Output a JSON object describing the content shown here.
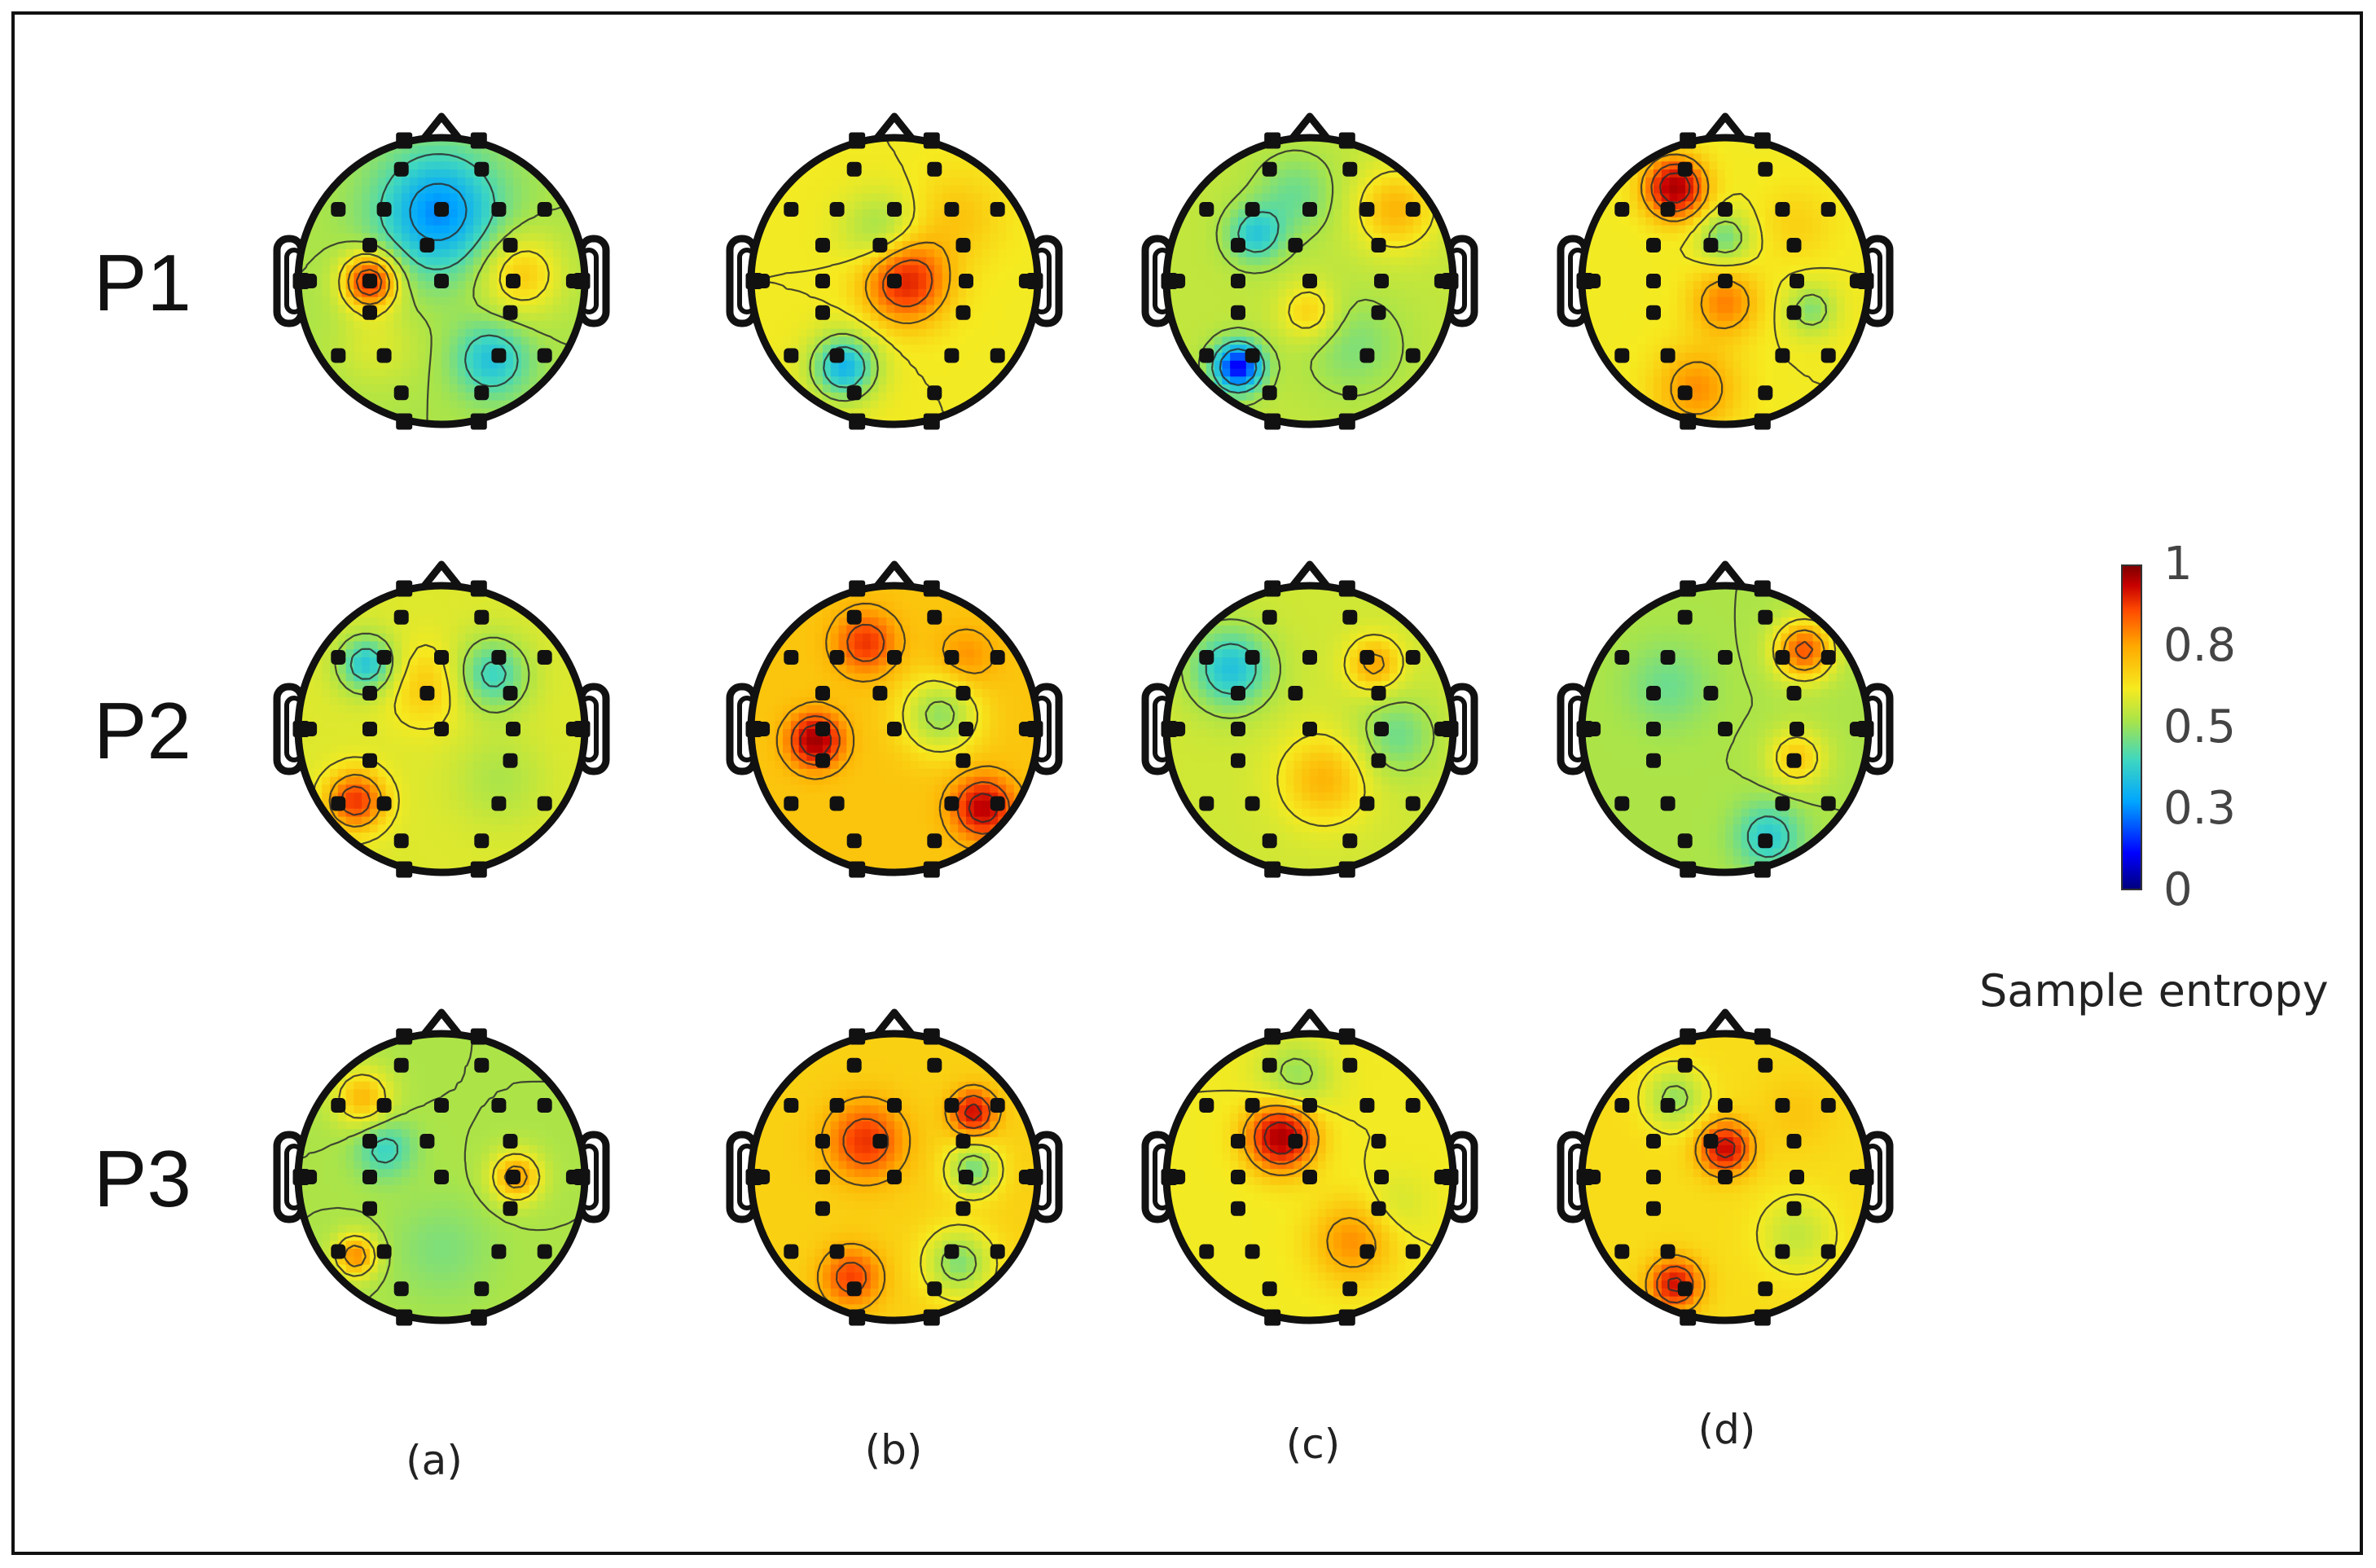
{
  "rows": [
    "P1",
    "P2",
    "P3"
  ],
  "columns": [
    "(a)",
    "(b)",
    "(c)",
    "(d)"
  ],
  "colorbar": {
    "title": "Sample entropy",
    "ticks": [
      "1",
      "0.8",
      "0.5",
      "0.3",
      "0"
    ]
  },
  "colormap": [
    "#00007f",
    "#0000ff",
    "#00a6ff",
    "#3fd7c0",
    "#a8e44a",
    "#f6ea20",
    "#ffaa00",
    "#ff4d00",
    "#c80000",
    "#7f0000"
  ],
  "maps": [
    [
      {
        "base": 0.45,
        "blobs": [
          [
            -0.02,
            -0.48,
            0.2,
            0.3
          ],
          [
            -0.5,
            0.0,
            0.85,
            0.13
          ],
          [
            0.55,
            -0.05,
            0.62,
            0.2
          ],
          [
            0.35,
            0.55,
            0.28,
            0.18
          ],
          [
            -0.45,
            0.45,
            0.52,
            0.2
          ],
          [
            0.0,
            0.2,
            0.45,
            0.25
          ]
        ]
      },
      {
        "base": 0.55,
        "blobs": [
          [
            0.08,
            0.0,
            0.85,
            0.2
          ],
          [
            -0.35,
            0.6,
            0.25,
            0.16
          ],
          [
            -0.1,
            -0.35,
            0.42,
            0.18
          ],
          [
            0.45,
            -0.45,
            0.62,
            0.22
          ]
        ]
      },
      {
        "base": 0.48,
        "blobs": [
          [
            -0.38,
            -0.32,
            0.3,
            0.14
          ],
          [
            -0.5,
            0.6,
            0.08,
            0.12
          ],
          [
            0.0,
            0.22,
            0.62,
            0.14
          ],
          [
            0.6,
            -0.5,
            0.65,
            0.2
          ],
          [
            0.3,
            0.45,
            0.4,
            0.25
          ],
          [
            -0.1,
            -0.6,
            0.38,
            0.2
          ]
        ]
      },
      {
        "base": 0.55,
        "blobs": [
          [
            -0.35,
            -0.65,
            0.95,
            0.14
          ],
          [
            0.0,
            -0.3,
            0.38,
            0.12
          ],
          [
            0.0,
            0.15,
            0.72,
            0.16
          ],
          [
            0.6,
            0.2,
            0.4,
            0.12
          ],
          [
            -0.2,
            0.75,
            0.7,
            0.2
          ],
          [
            0.5,
            -0.4,
            0.6,
            0.18
          ]
        ]
      }
    ],
    [
      {
        "base": 0.52,
        "blobs": [
          [
            -0.52,
            -0.45,
            0.28,
            0.14
          ],
          [
            0.35,
            -0.38,
            0.32,
            0.18
          ],
          [
            -0.6,
            0.5,
            0.82,
            0.14
          ],
          [
            -0.1,
            -0.3,
            0.62,
            0.2
          ],
          [
            0.4,
            0.35,
            0.45,
            0.22
          ]
        ]
      },
      {
        "base": 0.62,
        "blobs": [
          [
            -0.55,
            0.08,
            0.97,
            0.12
          ],
          [
            0.32,
            -0.1,
            0.42,
            0.18
          ],
          [
            0.62,
            0.55,
            0.92,
            0.14
          ],
          [
            -0.2,
            -0.6,
            0.82,
            0.14
          ],
          [
            0.5,
            -0.5,
            0.7,
            0.14
          ]
        ]
      },
      {
        "base": 0.5,
        "blobs": [
          [
            -0.55,
            -0.42,
            0.28,
            0.2
          ],
          [
            0.6,
            0.05,
            0.38,
            0.2
          ],
          [
            0.1,
            0.35,
            0.65,
            0.22
          ],
          [
            0.45,
            -0.45,
            0.68,
            0.13
          ],
          [
            -0.3,
            0.1,
            0.5,
            0.2
          ]
        ]
      },
      {
        "base": 0.45,
        "blobs": [
          [
            0.55,
            -0.55,
            0.78,
            0.14
          ],
          [
            0.3,
            0.75,
            0.3,
            0.16
          ],
          [
            0.5,
            0.2,
            0.62,
            0.14
          ],
          [
            -0.4,
            -0.3,
            0.38,
            0.2
          ],
          [
            -0.2,
            0.3,
            0.45,
            0.25
          ]
        ]
      }
    ],
    [
      {
        "base": 0.45,
        "blobs": [
          [
            -0.55,
            -0.55,
            0.65,
            0.14
          ],
          [
            -0.4,
            -0.2,
            0.32,
            0.14
          ],
          [
            0.52,
            0.0,
            0.7,
            0.12
          ],
          [
            -0.6,
            0.55,
            0.72,
            0.1
          ],
          [
            0.0,
            0.5,
            0.4,
            0.25
          ]
        ]
      },
      {
        "base": 0.6,
        "blobs": [
          [
            -0.2,
            -0.25,
            0.82,
            0.18
          ],
          [
            0.55,
            -0.45,
            0.9,
            0.1
          ],
          [
            0.55,
            -0.05,
            0.38,
            0.12
          ],
          [
            -0.3,
            0.7,
            0.8,
            0.14
          ],
          [
            0.45,
            0.6,
            0.4,
            0.16
          ]
        ]
      },
      {
        "base": 0.55,
        "blobs": [
          [
            -0.2,
            -0.28,
            0.95,
            0.16
          ],
          [
            0.3,
            0.45,
            0.7,
            0.2
          ],
          [
            -0.1,
            -0.7,
            0.42,
            0.18
          ],
          [
            0.6,
            0.2,
            0.5,
            0.16
          ],
          [
            -0.55,
            0.5,
            0.55,
            0.2
          ]
        ]
      },
      {
        "base": 0.58,
        "blobs": [
          [
            0.0,
            -0.2,
            0.9,
            0.12
          ],
          [
            -0.35,
            0.75,
            0.88,
            0.12
          ],
          [
            -0.35,
            -0.55,
            0.42,
            0.14
          ],
          [
            0.5,
            0.4,
            0.48,
            0.18
          ],
          [
            0.5,
            -0.45,
            0.62,
            0.18
          ]
        ]
      }
    ]
  ]
}
